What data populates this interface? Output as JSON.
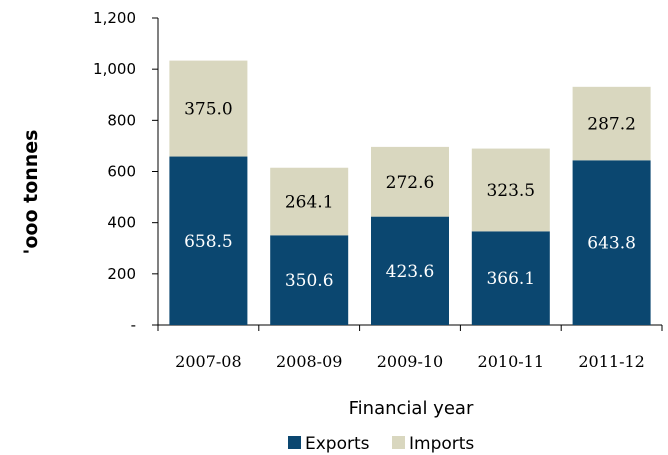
{
  "chart_data": {
    "type": "bar",
    "stacked": true,
    "categories": [
      "2007-08",
      "2008-09",
      "2009-10",
      "2010-11",
      "2011-12"
    ],
    "series": [
      {
        "name": "Exports",
        "color": "#0b4770",
        "label_color": "#ffffff",
        "values": [
          658.5,
          350.6,
          423.6,
          366.1,
          643.8
        ]
      },
      {
        "name": "Imports",
        "color": "#d9d7bf",
        "label_color": "#000000",
        "values": [
          375.0,
          264.1,
          272.6,
          323.5,
          287.2
        ]
      }
    ],
    "value_labels": {
      "Exports": [
        "658.5",
        "350.6",
        "423.6",
        "366.1",
        "643.8"
      ],
      "Imports": [
        "375.0",
        "264.1",
        "272.6",
        "323.5",
        "287.2"
      ]
    },
    "title": "",
    "xlabel": "Financial year",
    "ylabel": "'ooo tonnes",
    "ylim": [
      0,
      1200
    ],
    "yticks": [
      0,
      200,
      400,
      600,
      800,
      1000,
      1200
    ],
    "ytick_labels": [
      "-",
      "200",
      "400",
      "600",
      "800",
      "1,000",
      "1,200"
    ],
    "grid": false,
    "legend_position": "bottom"
  }
}
